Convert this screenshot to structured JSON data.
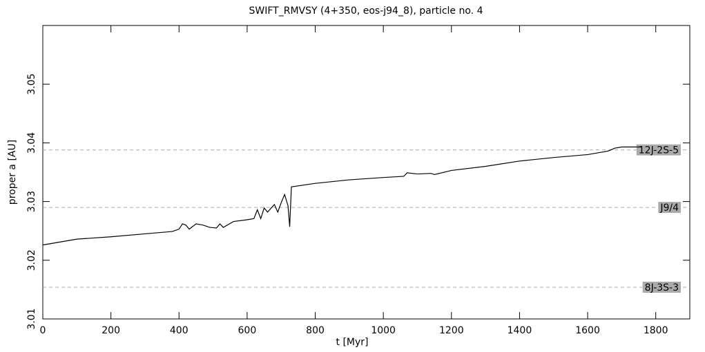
{
  "chart_data": {
    "type": "line",
    "title": "SWIFT_RMVSY (4+350, eos-j94_8), particle no. 4",
    "x_label": "t [Myr]",
    "y_label": "proper a [AU]",
    "x": [
      0,
      100,
      200,
      300,
      380,
      400,
      410,
      420,
      430,
      450,
      470,
      490,
      510,
      520,
      530,
      560,
      600,
      620,
      630,
      640,
      650,
      660,
      680,
      690,
      700,
      710,
      720,
      725,
      730,
      800,
      900,
      1000,
      1060,
      1070,
      1100,
      1140,
      1150,
      1200,
      1300,
      1400,
      1500,
      1600,
      1660,
      1680,
      1700,
      1720,
      1760
    ],
    "series": [
      {
        "name": "proper a",
        "color": "#000000",
        "values": [
          3.0226,
          3.0236,
          3.024,
          3.0245,
          3.0249,
          3.0253,
          3.0262,
          3.026,
          3.0253,
          3.0262,
          3.026,
          3.0256,
          3.0255,
          3.0262,
          3.0256,
          3.0266,
          3.0269,
          3.0271,
          3.0286,
          3.0271,
          3.0289,
          3.0282,
          3.0295,
          3.0282,
          3.0298,
          3.0312,
          3.0293,
          3.0257,
          3.0325,
          3.0331,
          3.0337,
          3.0341,
          3.0343,
          3.0349,
          3.0347,
          3.0348,
          3.0346,
          3.0353,
          3.036,
          3.0369,
          3.0375,
          3.038,
          3.0386,
          3.0391,
          3.0393,
          3.0393,
          3.0393
        ]
      }
    ],
    "resonances": [
      {
        "label": "12J-2S-5",
        "value": 3.0388
      },
      {
        "label": "J9/4",
        "value": 3.029
      },
      {
        "label": "8J-3S-3",
        "value": 3.0154
      }
    ],
    "resonance_color": "#aaaaaa",
    "xlim": [
      0,
      1900
    ],
    "xticks": [
      0,
      200,
      400,
      600,
      800,
      1000,
      1200,
      1400,
      1600,
      1800
    ],
    "ylim": [
      3.01,
      3.06
    ],
    "yticks": [
      3.01,
      3.02,
      3.03,
      3.04,
      3.05
    ]
  }
}
